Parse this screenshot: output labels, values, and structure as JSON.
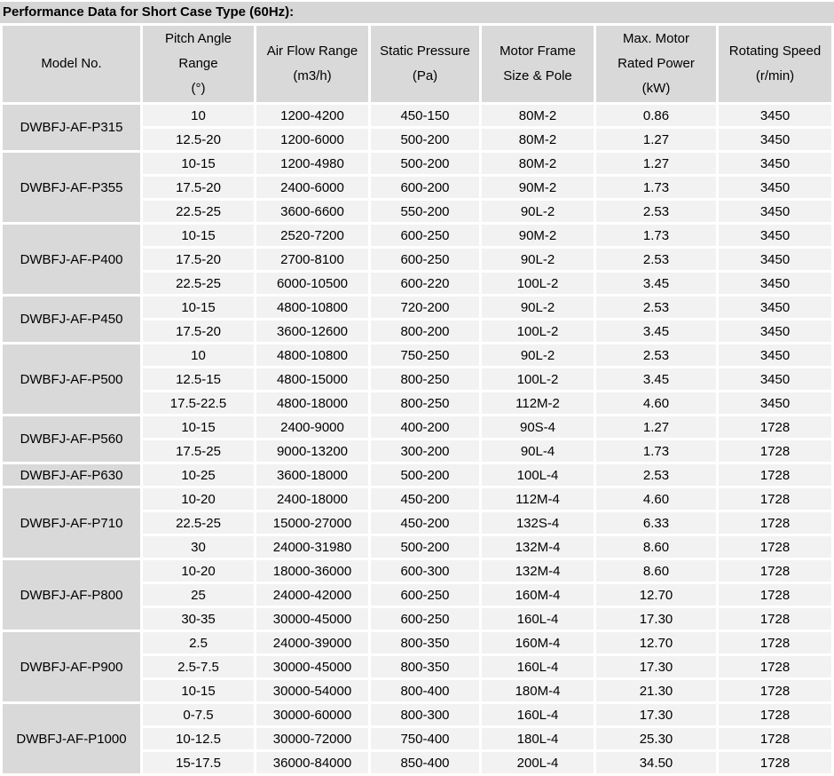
{
  "title": "Performance Data for Short Case Type (60Hz):",
  "colors": {
    "header_gray": "#d9d9d9",
    "title_gray": "#d6d6d6",
    "cell_bg": "#f2f2f2",
    "text": "#000000"
  },
  "table": {
    "headers": [
      {
        "name": "model-no",
        "lines": [
          "Model No."
        ]
      },
      {
        "name": "pitch-angle",
        "lines": [
          "Pitch Angle",
          "Range",
          "(°)"
        ]
      },
      {
        "name": "air-flow",
        "lines": [
          "Air Flow Range",
          "(m3/h)"
        ]
      },
      {
        "name": "static-pressure",
        "lines": [
          "Static Pressure",
          "(Pa)"
        ]
      },
      {
        "name": "motor-frame",
        "lines": [
          "Motor Frame",
          "Size & Pole"
        ]
      },
      {
        "name": "rated-power",
        "lines": [
          "Max. Motor",
          "Rated Power",
          "(kW)"
        ]
      },
      {
        "name": "rotating-speed",
        "lines": [
          "Rotating Speed",
          "(r/min)"
        ]
      }
    ],
    "cell_names": [
      "pitch-angle-cell",
      "air-flow-cell",
      "static-pressure-cell",
      "motor-frame-cell",
      "rated-power-cell",
      "rotating-speed-cell"
    ],
    "groups": [
      {
        "model": "DWBFJ-AF-P315",
        "rows": [
          [
            "10",
            "1200-4200",
            "450-150",
            "80M-2",
            "0.86",
            "3450"
          ],
          [
            "12.5-20",
            "1200-6000",
            "500-200",
            "80M-2",
            "1.27",
            "3450"
          ]
        ]
      },
      {
        "model": "DWBFJ-AF-P355",
        "rows": [
          [
            "10-15",
            "1200-4980",
            "500-200",
            "80M-2",
            "1.27",
            "3450"
          ],
          [
            "17.5-20",
            "2400-6000",
            "600-200",
            "90M-2",
            "1.73",
            "3450"
          ],
          [
            "22.5-25",
            "3600-6600",
            "550-200",
            "90L-2",
            "2.53",
            "3450"
          ]
        ]
      },
      {
        "model": "DWBFJ-AF-P400",
        "rows": [
          [
            "10-15",
            "2520-7200",
            "600-250",
            "90M-2",
            "1.73",
            "3450"
          ],
          [
            "17.5-20",
            "2700-8100",
            "600-250",
            "90L-2",
            "2.53",
            "3450"
          ],
          [
            "22.5-25",
            "6000-10500",
            "600-220",
            "100L-2",
            "3.45",
            "3450"
          ]
        ]
      },
      {
        "model": "DWBFJ-AF-P450",
        "rows": [
          [
            "10-15",
            "4800-10800",
            "720-200",
            "90L-2",
            "2.53",
            "3450"
          ],
          [
            "17.5-20",
            "3600-12600",
            "800-200",
            "100L-2",
            "3.45",
            "3450"
          ]
        ]
      },
      {
        "model": "DWBFJ-AF-P500",
        "rows": [
          [
            "10",
            "4800-10800",
            "750-250",
            "90L-2",
            "2.53",
            "3450"
          ],
          [
            "12.5-15",
            "4800-15000",
            "800-250",
            "100L-2",
            "3.45",
            "3450"
          ],
          [
            "17.5-22.5",
            "4800-18000",
            "800-250",
            "112M-2",
            "4.60",
            "3450"
          ]
        ]
      },
      {
        "model": "DWBFJ-AF-P560",
        "rows": [
          [
            "10-15",
            "2400-9000",
            "400-200",
            "90S-4",
            "1.27",
            "1728"
          ],
          [
            "17.5-25",
            "9000-13200",
            "300-200",
            "90L-4",
            "1.73",
            "1728"
          ]
        ]
      },
      {
        "model": "DWBFJ-AF-P630",
        "rows": [
          [
            "10-25",
            "3600-18000",
            "500-200",
            "100L-4",
            "2.53",
            "1728"
          ]
        ]
      },
      {
        "model": "DWBFJ-AF-P710",
        "rows": [
          [
            "10-20",
            "2400-18000",
            "450-200",
            "112M-4",
            "4.60",
            "1728"
          ],
          [
            "22.5-25",
            "15000-27000",
            "450-200",
            "132S-4",
            "6.33",
            "1728"
          ],
          [
            "30",
            "24000-31980",
            "500-200",
            "132M-4",
            "8.60",
            "1728"
          ]
        ]
      },
      {
        "model": "DWBFJ-AF-P800",
        "rows": [
          [
            "10-20",
            "18000-36000",
            "600-300",
            "132M-4",
            "8.60",
            "1728"
          ],
          [
            "25",
            "24000-42000",
            "600-250",
            "160M-4",
            "12.70",
            "1728"
          ],
          [
            "30-35",
            "30000-45000",
            "600-250",
            "160L-4",
            "17.30",
            "1728"
          ]
        ]
      },
      {
        "model": "DWBFJ-AF-P900",
        "rows": [
          [
            "2.5",
            "24000-39000",
            "800-350",
            "160M-4",
            "12.70",
            "1728"
          ],
          [
            "2.5-7.5",
            "30000-45000",
            "800-350",
            "160L-4",
            "17.30",
            "1728"
          ],
          [
            "10-15",
            "30000-54000",
            "800-400",
            "180M-4",
            "21.30",
            "1728"
          ]
        ]
      },
      {
        "model": "DWBFJ-AF-P1000",
        "rows": [
          [
            "0-7.5",
            "30000-60000",
            "800-300",
            "160L-4",
            "17.30",
            "1728"
          ],
          [
            "10-12.5",
            "30000-72000",
            "750-400",
            "180L-4",
            "25.30",
            "1728"
          ],
          [
            "15-17.5",
            "36000-84000",
            "850-400",
            "200L-4",
            "34.50",
            "1728"
          ]
        ]
      }
    ]
  }
}
